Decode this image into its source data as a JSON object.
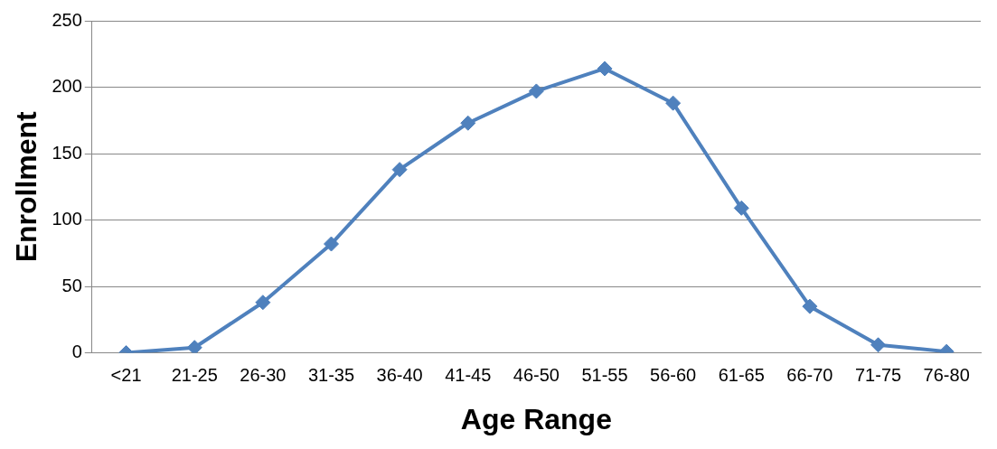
{
  "chart_data": {
    "type": "line",
    "xlabel": "Age Range",
    "ylabel": "Enrollment",
    "categories": [
      "<21",
      "21-25",
      "26-30",
      "31-35",
      "36-40",
      "41-45",
      "46-50",
      "51-55",
      "56-60",
      "61-65",
      "66-70",
      "71-75",
      "76-80"
    ],
    "series": [
      {
        "color": "#4f81bd",
        "values": [
          0,
          4,
          38,
          82,
          138,
          173,
          197,
          214,
          188,
          109,
          35,
          6,
          1
        ]
      }
    ],
    "ylim": [
      0,
      250
    ],
    "yticks": [
      0,
      50,
      100,
      150,
      200,
      250
    ],
    "grid": "y",
    "legend": false,
    "marker": "diamond",
    "line_style": "solid"
  }
}
